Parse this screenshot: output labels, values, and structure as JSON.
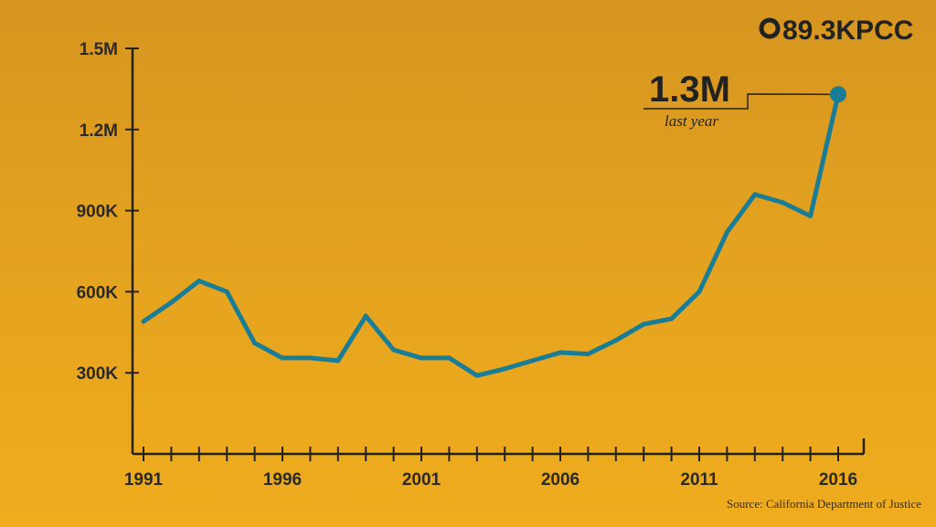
{
  "logo": {
    "ring_symbol": "O",
    "text": "89.3KPCC"
  },
  "source": "Source: California Department of Justice",
  "callout": {
    "value": "1.3M",
    "label": "last year"
  },
  "colors": {
    "line": "#1a7d98",
    "axis": "#222222",
    "text": "#2a2a2a"
  },
  "chart_data": {
    "type": "line",
    "x": [
      1991,
      1992,
      1993,
      1994,
      1995,
      1996,
      1997,
      1998,
      1999,
      2000,
      2001,
      2002,
      2003,
      2004,
      2005,
      2006,
      2007,
      2008,
      2009,
      2010,
      2011,
      2012,
      2013,
      2014,
      2015,
      2016
    ],
    "values": [
      490000,
      560000,
      640000,
      600000,
      410000,
      355000,
      355000,
      345000,
      510000,
      385000,
      355000,
      355000,
      290000,
      315000,
      345000,
      375000,
      370000,
      420000,
      480000,
      500000,
      600000,
      820000,
      960000,
      930000,
      880000,
      1330000
    ],
    "ylim": [
      0,
      1500000
    ],
    "xlim": [
      1991,
      2016
    ],
    "yticks": [
      {
        "value": 300000,
        "label": "300K"
      },
      {
        "value": 600000,
        "label": "600K"
      },
      {
        "value": 900000,
        "label": "900K"
      },
      {
        "value": 1200000,
        "label": "1.2M"
      },
      {
        "value": 1500000,
        "label": "1.5M"
      }
    ],
    "xticks_labeled": [
      {
        "value": 1991,
        "label": "1991"
      },
      {
        "value": 1996,
        "label": "1996"
      },
      {
        "value": 2001,
        "label": "2001"
      },
      {
        "value": 2006,
        "label": "2006"
      },
      {
        "value": 2011,
        "label": "2011"
      },
      {
        "value": 2016,
        "label": "2016"
      }
    ],
    "title": "",
    "xlabel": "",
    "ylabel": "",
    "grid": false,
    "highlight_last_point": true
  }
}
